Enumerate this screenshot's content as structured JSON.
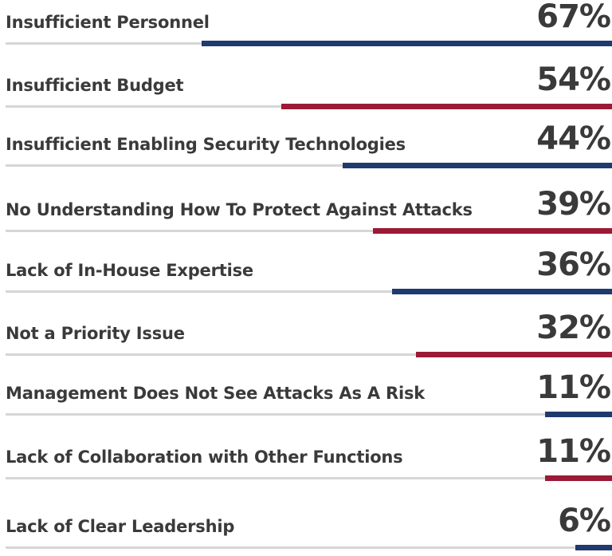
{
  "chart_data": {
    "type": "bar",
    "orientation": "horizontal",
    "categories": [
      "Insufficient Personnel",
      "Insufficient Budget",
      "Insufficient Enabling Security Technologies",
      "No Understanding  How To Protect Against Attacks",
      "Lack of In-House Expertise",
      "Not a Priority Issue",
      "Management Does Not See Attacks As A Risk",
      "Lack of Collaboration with Other Functions",
      "Lack of Clear Leadership"
    ],
    "values": [
      67,
      54,
      44,
      39,
      36,
      32,
      11,
      11,
      6
    ],
    "value_labels": [
      "67%",
      "54%",
      "44%",
      "39%",
      "36%",
      "32%",
      "11%",
      "11%",
      "6%"
    ],
    "xlim": [
      0,
      100
    ],
    "grid": false,
    "legend": "none",
    "bar_colors": [
      "#1e3a6e",
      "#9b1a35",
      "#1e3a6e",
      "#9b1a35",
      "#1e3a6e",
      "#9b1a35",
      "#1e3a6e",
      "#9b1a35",
      "#1e3a6e"
    ],
    "track_color": "#d6d6d6",
    "text_color": "#3a3a3a"
  }
}
